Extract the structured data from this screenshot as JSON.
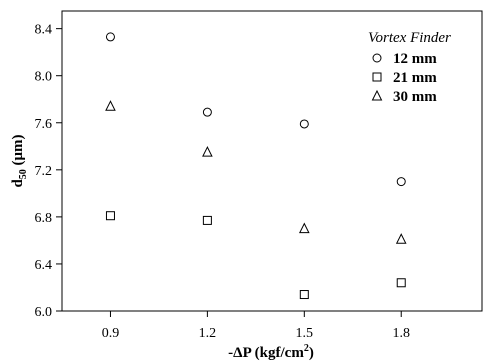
{
  "chart_data": {
    "type": "scatter",
    "title": "",
    "xlabel": "-ΔP (kgf/cm",
    "xlabel_sup": "2",
    "xlabel_end": ")",
    "ylabel": "d",
    "ylabel_sub": "50",
    "ylabel_end": " (μm)",
    "x_ticks": [
      "0.9",
      "1.2",
      "1.5",
      "1.8"
    ],
    "y_ticks": [
      "6.0",
      "6.4",
      "6.8",
      "7.2",
      "7.6",
      "8.0",
      "8.4"
    ],
    "xlim": [
      0.75,
      2.05
    ],
    "ylim": [
      6.0,
      8.55
    ],
    "grid": false,
    "legend_title": "Vortex Finder",
    "legend_position": "top-right",
    "series": [
      {
        "name": "12 mm",
        "marker": "circle",
        "x": [
          0.9,
          1.2,
          1.5,
          1.8
        ],
        "y": [
          8.33,
          7.69,
          7.59,
          7.1
        ]
      },
      {
        "name": "21 mm",
        "marker": "square",
        "x": [
          0.9,
          1.2,
          1.5,
          1.8
        ],
        "y": [
          6.81,
          6.77,
          6.14,
          6.24
        ]
      },
      {
        "name": "30 mm",
        "marker": "triangle",
        "x": [
          0.9,
          1.2,
          1.5,
          1.8
        ],
        "y": [
          7.74,
          7.35,
          6.7,
          6.61
        ]
      }
    ]
  }
}
